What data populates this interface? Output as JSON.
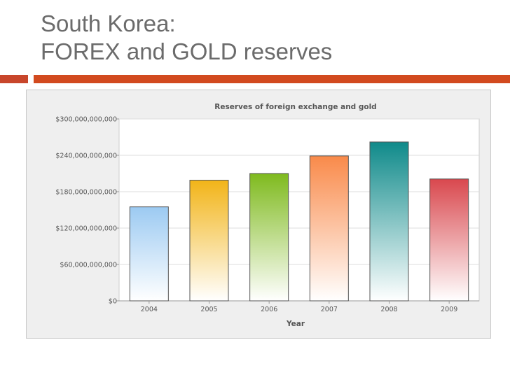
{
  "slide": {
    "title_line1": "South Korea:",
    "title_line2": "FOREX and GOLD reserves",
    "accent_color": "#d24a1f"
  },
  "chart_data": {
    "type": "bar",
    "title": "Reserves of foreign exchange and gold",
    "xlabel": "Year",
    "ylabel": "",
    "categories": [
      "2004",
      "2005",
      "2006",
      "2007",
      "2008",
      "2009"
    ],
    "values": [
      155000000000,
      199000000000,
      210000000000,
      239000000000,
      262000000000,
      201000000000
    ],
    "ylim": [
      0,
      300000000000
    ],
    "yticks": [
      0,
      60000000000,
      120000000000,
      180000000000,
      240000000000,
      300000000000
    ],
    "ytick_labels": [
      "$0",
      "$60,000,000,000",
      "$120,000,000,000",
      "$180,000,000,000",
      "$240,000,000,000",
      "$300,000,000,000"
    ],
    "grid": true,
    "legend": "none",
    "bar_colors": [
      {
        "top": "#9ccaf2",
        "bottom": "#ffffff"
      },
      {
        "top": "#f2b418",
        "bottom": "#ffffff"
      },
      {
        "top": "#7fba1e",
        "bottom": "#ffffff"
      },
      {
        "top": "#f98a4a",
        "bottom": "#ffffff"
      },
      {
        "top": "#0f8a8a",
        "bottom": "#ffffff"
      },
      {
        "top": "#d9484e",
        "bottom": "#ffffff"
      }
    ]
  }
}
